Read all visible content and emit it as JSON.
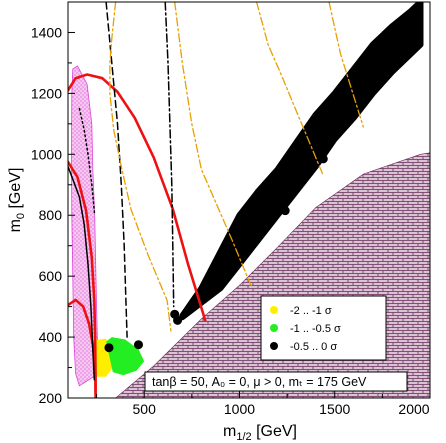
{
  "chart_data": {
    "type": "scatter",
    "xlabel_main": "m",
    "xlabel_sub": "1/2",
    "xlabel_unit": " [GeV]",
    "ylabel_main": "m",
    "ylabel_sub": "0",
    "ylabel_unit": " [GeV]",
    "xlim": [
      100,
      2000
    ],
    "ylim": [
      200,
      1500
    ],
    "xticks": [
      500,
      1000,
      1500,
      2000
    ],
    "yticks": [
      200,
      400,
      600,
      800,
      1000,
      1200,
      1400
    ],
    "annotation": "tanβ = 50, A₀ = 0, μ > 0, mₜ = 175 GeV",
    "legend_position": "lower-right",
    "colors": {
      "yellow": "#ffee00",
      "green": "#22ee22",
      "black": "#000000",
      "red": "#ee1111",
      "orange": "#e8a000",
      "magenta": "#dd44dd",
      "excluded_fill": "#d9c4d4",
      "excluded_hatch": "#6a2a5a"
    },
    "series": [
      {
        "name": "-2 .. -1 σ",
        "color": "#ffee00",
        "region": [
          [
            245,
            270
          ],
          [
            245,
            390
          ],
          [
            300,
            395
          ],
          [
            330,
            360
          ],
          [
            335,
            300
          ],
          [
            300,
            270
          ]
        ]
      },
      {
        "name": "-1 .. -0.5 σ",
        "color": "#22ee22",
        "region": [
          [
            300,
            385
          ],
          [
            330,
            400
          ],
          [
            400,
            392
          ],
          [
            470,
            360
          ],
          [
            500,
            320
          ],
          [
            460,
            290
          ],
          [
            390,
            275
          ],
          [
            335,
            285
          ]
        ]
      },
      {
        "name": "-0.5 .. 0 σ",
        "color": "#000000",
        "band_lower": [
          [
            700,
            465
          ],
          [
            900,
            560
          ],
          [
            1000,
            640
          ],
          [
            1100,
            720
          ],
          [
            1200,
            800
          ],
          [
            1300,
            880
          ],
          [
            1400,
            960
          ],
          [
            1500,
            1050
          ],
          [
            1600,
            1120
          ],
          [
            1700,
            1200
          ],
          [
            1800,
            1270
          ],
          [
            1900,
            1330
          ],
          [
            1950,
            1360
          ]
        ],
        "band_upper": [
          [
            700,
            470
          ],
          [
            800,
            560
          ],
          [
            900,
            680
          ],
          [
            1000,
            800
          ],
          [
            1100,
            880
          ],
          [
            1200,
            950
          ],
          [
            1300,
            1040
          ],
          [
            1400,
            1130
          ],
          [
            1500,
            1200
          ],
          [
            1600,
            1280
          ],
          [
            1700,
            1360
          ],
          [
            1800,
            1420
          ],
          [
            1900,
            1470
          ],
          [
            1950,
            1500
          ]
        ],
        "points": [
          [
            315,
            365
          ],
          [
            470,
            375
          ],
          [
            660,
            475
          ],
          [
            675,
            455
          ],
          [
            1240,
            815
          ],
          [
            1440,
            985
          ]
        ]
      }
    ],
    "excluded_region": [
      [
        350,
        200
      ],
      [
        550,
        305
      ],
      [
        800,
        460
      ],
      [
        1000,
        570
      ],
      [
        1200,
        695
      ],
      [
        1400,
        825
      ],
      [
        1650,
        935
      ],
      [
        1950,
        1000
      ],
      [
        2000,
        1005
      ],
      [
        2000,
        200
      ]
    ],
    "contours": [
      {
        "color": "#ee1111",
        "style": "solid",
        "points": [
          [
            100,
            1210
          ],
          [
            140,
            1250
          ],
          [
            200,
            1262
          ],
          [
            280,
            1250
          ],
          [
            360,
            1205
          ],
          [
            450,
            1120
          ],
          [
            550,
            990
          ],
          [
            650,
            820
          ],
          [
            730,
            640
          ],
          [
            820,
            455
          ]
        ]
      },
      {
        "color": "#ee1111",
        "style": "solid",
        "points": [
          [
            100,
            975
          ],
          [
            150,
            925
          ],
          [
            195,
            815
          ],
          [
            225,
            660
          ],
          [
            238,
            520
          ],
          [
            243,
            390
          ],
          [
            245,
            250
          ],
          [
            245,
            200
          ]
        ]
      },
      {
        "color": "#ee1111",
        "style": "solid",
        "points": [
          [
            100,
            505
          ],
          [
            140,
            522
          ],
          [
            180,
            500
          ],
          [
            210,
            445
          ],
          [
            232,
            370
          ],
          [
            243,
            290
          ],
          [
            245,
            215
          ]
        ]
      },
      {
        "color": "#000000",
        "style": "dashed",
        "points": [
          [
            300,
            1500
          ],
          [
            330,
            1300
          ],
          [
            360,
            1100
          ],
          [
            380,
            900
          ],
          [
            395,
            700
          ],
          [
            405,
            500
          ],
          [
            410,
            400
          ]
        ]
      },
      {
        "color": "#000000",
        "style": "dashdot",
        "points": [
          [
            610,
            1500
          ],
          [
            625,
            1300
          ],
          [
            635,
            1100
          ],
          [
            645,
            900
          ],
          [
            650,
            700
          ],
          [
            655,
            500
          ]
        ]
      },
      {
        "color": "#000000",
        "style": "solid",
        "points": [
          [
            100,
            960
          ],
          [
            130,
            910
          ],
          [
            160,
            860
          ],
          [
            185,
            770
          ],
          [
            205,
            640
          ],
          [
            220,
            500
          ],
          [
            230,
            360
          ],
          [
            238,
            260
          ]
        ]
      },
      {
        "color": "#000000",
        "style": "dotted",
        "points": [
          [
            160,
            1150
          ],
          [
            185,
            1080
          ],
          [
            205,
            1000
          ],
          [
            225,
            900
          ],
          [
            240,
            800
          ]
        ]
      },
      {
        "color": "#e8a000",
        "style": "dashdot",
        "points": [
          [
            350,
            1500
          ],
          [
            330,
            1380
          ],
          [
            320,
            1300
          ],
          [
            320,
            1200
          ],
          [
            340,
            1080
          ],
          [
            380,
            960
          ],
          [
            430,
            820
          ],
          [
            520,
            670
          ],
          [
            620,
            520
          ],
          [
            640,
            420
          ]
        ]
      },
      {
        "color": "#e8a000",
        "style": "dashdot",
        "points": [
          [
            660,
            1500
          ],
          [
            700,
            1300
          ],
          [
            750,
            1100
          ],
          [
            800,
            950
          ],
          [
            870,
            850
          ],
          [
            960,
            720
          ],
          [
            1060,
            570
          ]
        ]
      },
      {
        "color": "#e8a000",
        "style": "dashdot",
        "points": [
          [
            1090,
            1500
          ],
          [
            1150,
            1360
          ],
          [
            1220,
            1260
          ],
          [
            1300,
            1140
          ],
          [
            1380,
            1020
          ],
          [
            1440,
            930
          ]
        ]
      },
      {
        "color": "#e8a000",
        "style": "dashdot",
        "points": [
          [
            1470,
            1500
          ],
          [
            1530,
            1330
          ],
          [
            1580,
            1230
          ],
          [
            1620,
            1150
          ],
          [
            1650,
            1090
          ]
        ]
      }
    ],
    "stau_band": {
      "color": "#dd44dd",
      "left": [
        [
          125,
          1280
        ],
        [
          120,
          1200
        ],
        [
          118,
          1000
        ],
        [
          120,
          800
        ],
        [
          125,
          600
        ],
        [
          130,
          400
        ],
        [
          140,
          280
        ],
        [
          160,
          240
        ]
      ],
      "right": [
        [
          150,
          1290
        ],
        [
          200,
          1230
        ],
        [
          225,
          1100
        ],
        [
          230,
          950
        ],
        [
          240,
          800
        ],
        [
          245,
          650
        ],
        [
          250,
          500
        ],
        [
          255,
          380
        ],
        [
          260,
          280
        ]
      ]
    }
  },
  "legend": {
    "items": [
      {
        "label": "-2 .. -1 σ",
        "color": "#ffee00"
      },
      {
        "label": "-1 .. -0.5 σ",
        "color": "#22ee22"
      },
      {
        "label": "-0.5 .. 0 σ",
        "color": "#000000"
      }
    ]
  }
}
